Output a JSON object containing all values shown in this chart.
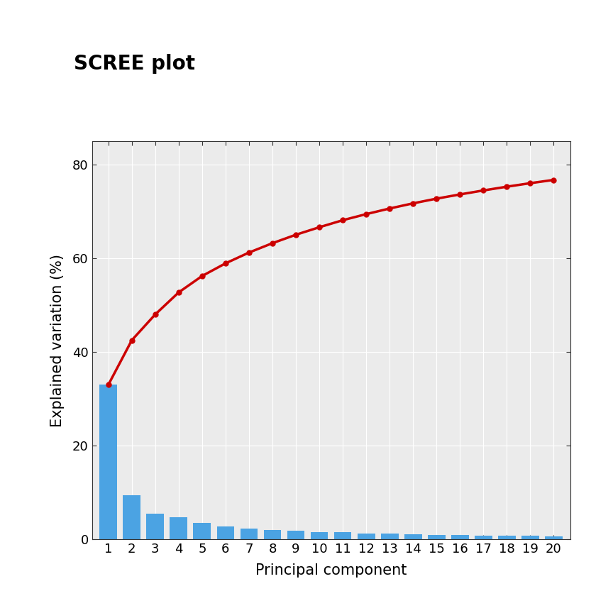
{
  "title": "SCREE plot",
  "xlabel": "Principal component",
  "ylabel": "Explained variation (%)",
  "pcs": [
    1,
    2,
    3,
    4,
    5,
    6,
    7,
    8,
    9,
    10,
    11,
    12,
    13,
    14,
    15,
    16,
    17,
    18,
    19,
    20
  ],
  "variance": [
    33.0,
    9.5,
    5.5,
    4.7,
    3.5,
    2.7,
    2.3,
    2.0,
    1.8,
    1.6,
    1.5,
    1.3,
    1.2,
    1.1,
    1.0,
    0.9,
    0.85,
    0.8,
    0.75,
    0.7
  ],
  "cumulative": [
    33.0,
    42.5,
    48.0,
    52.7,
    56.2,
    58.9,
    61.2,
    63.2,
    65.0,
    66.6,
    68.1,
    69.4,
    70.6,
    71.7,
    72.7,
    73.6,
    74.45,
    75.25,
    76.0,
    76.7
  ],
  "bar_color": "#4BA3E3",
  "line_color": "#CC0000",
  "background_color": "#EBEBEB",
  "grid_color": "#FFFFFF",
  "fig_background": "#FFFFFF",
  "spine_color": "#333333",
  "ylim": [
    0,
    85
  ],
  "yticks": [
    0,
    20,
    40,
    60,
    80
  ],
  "title_fontsize": 20,
  "axis_label_fontsize": 15,
  "tick_fontsize": 13,
  "line_width": 2.5,
  "marker_size": 5,
  "bar_width": 0.75
}
